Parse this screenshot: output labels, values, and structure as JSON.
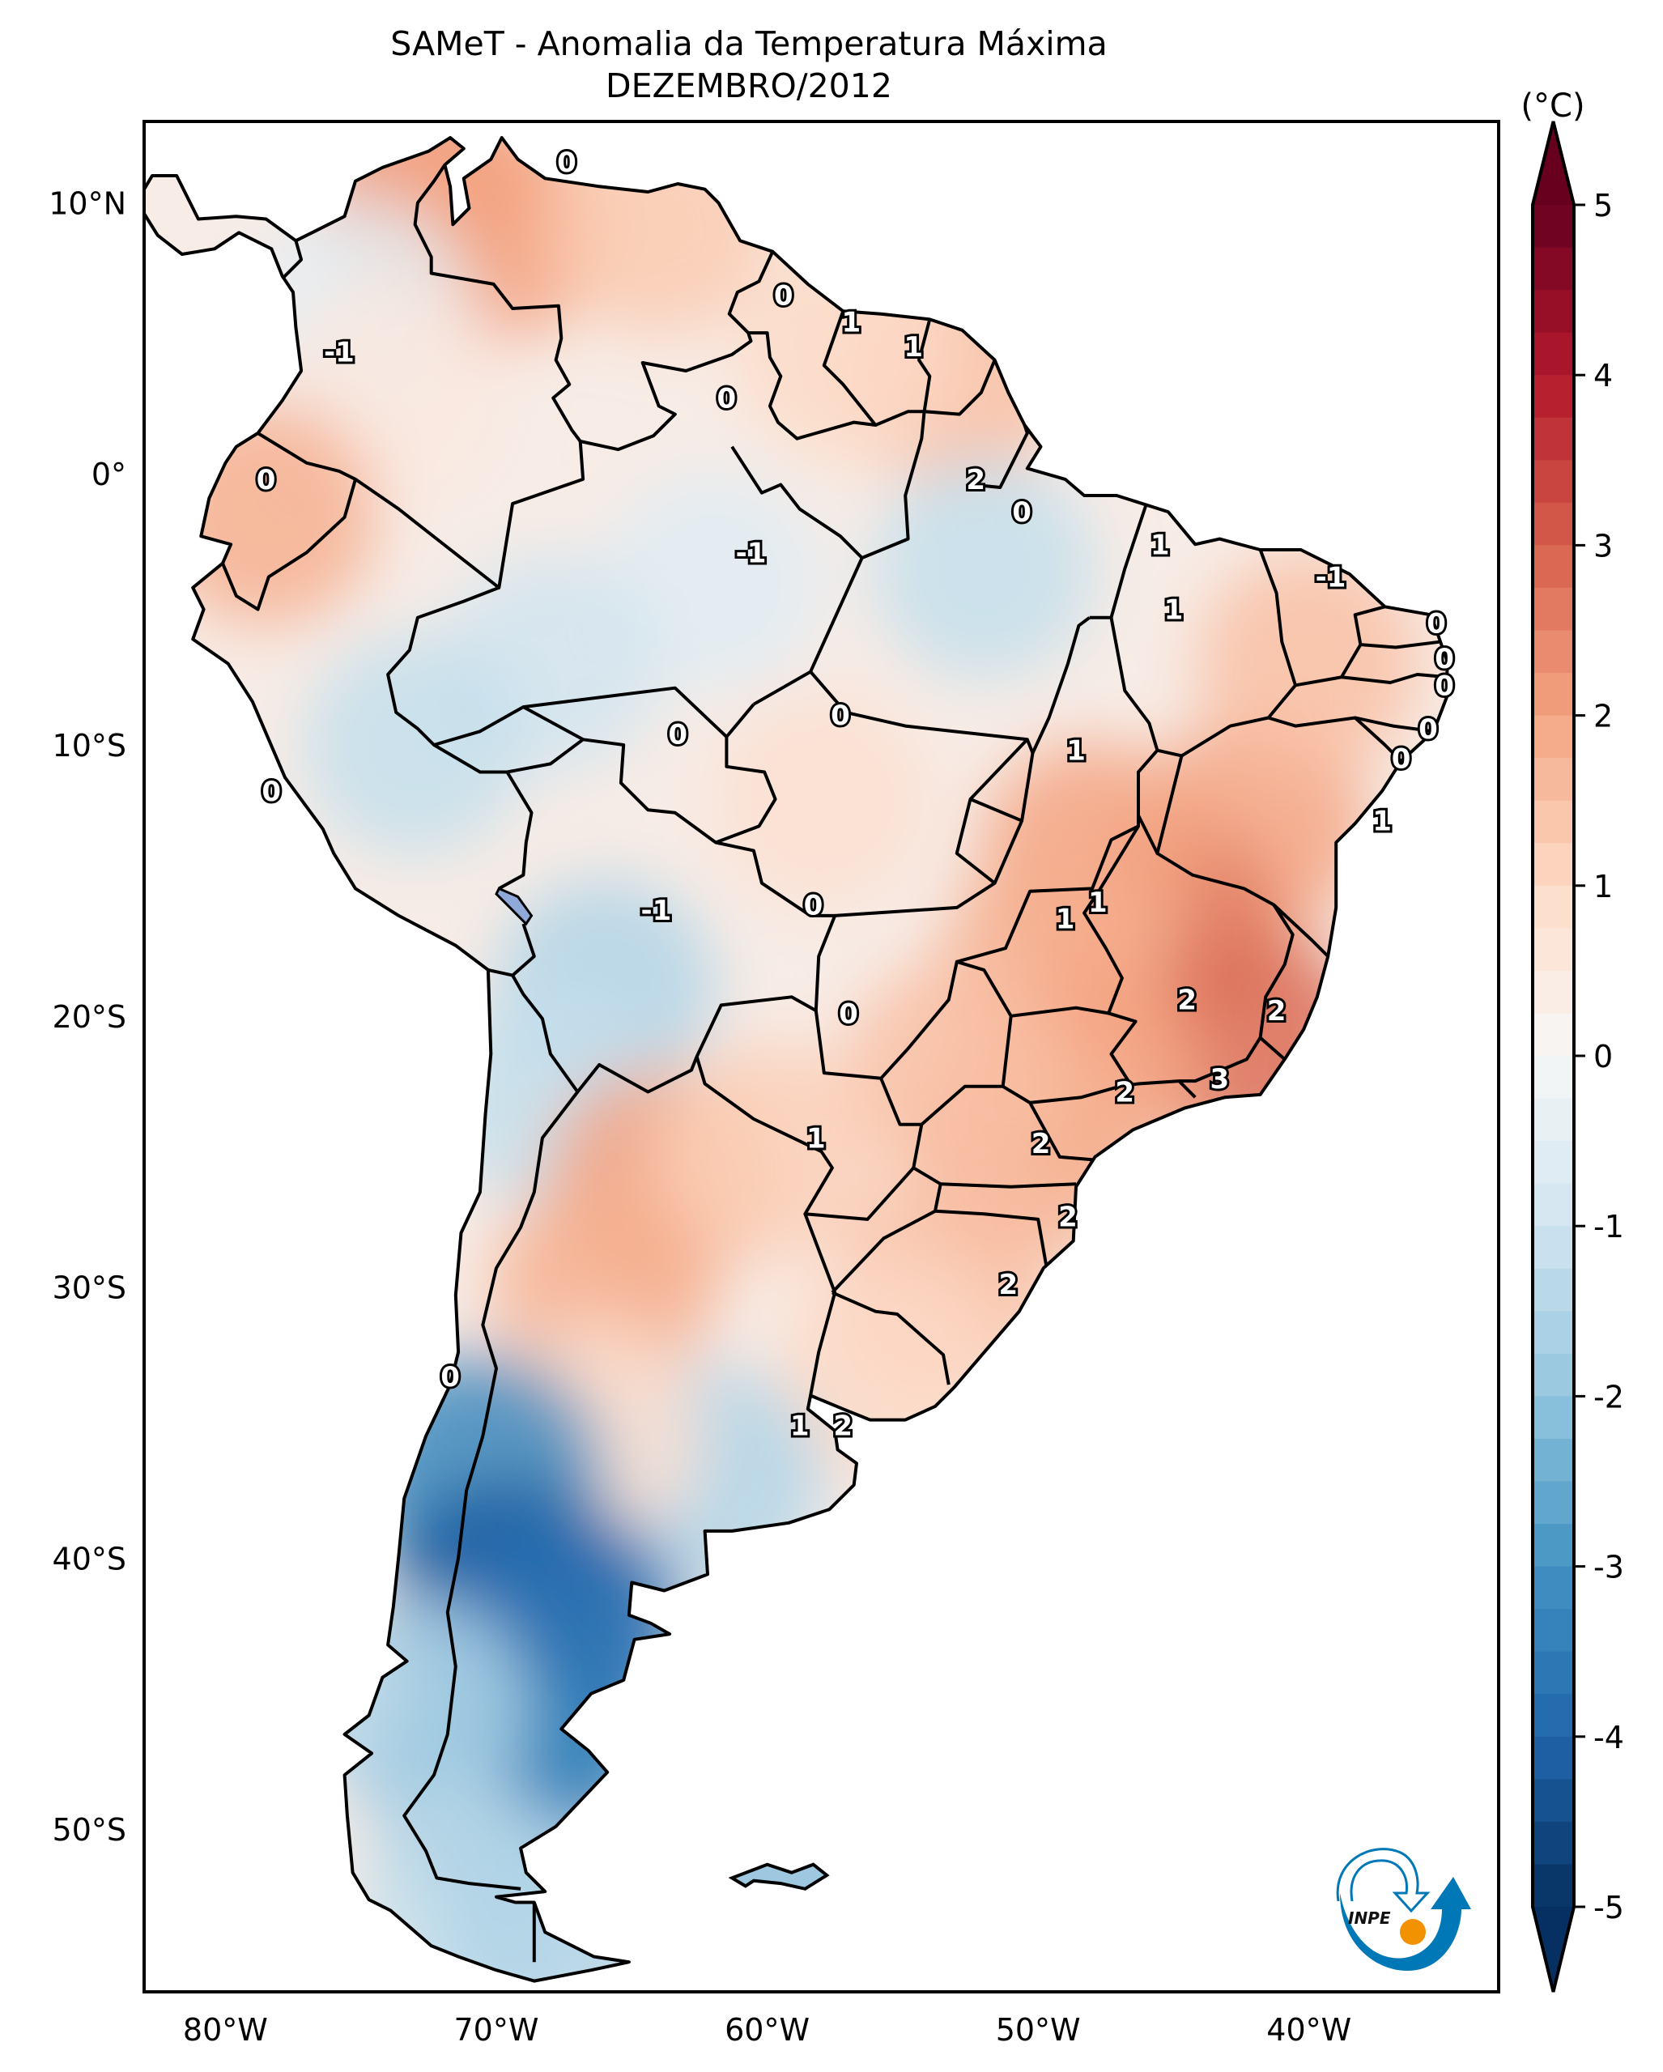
{
  "title": {
    "line1": "SAMeT - Anomalia da Temperatura Máxima",
    "line2": "DEZEMBRO/2012"
  },
  "logo": {
    "text": "INPE",
    "name": "inpe-logo"
  },
  "chart_data": {
    "type": "heatmap",
    "title": "SAMeT - Anomalia da Temperatura Máxima",
    "subtitle": "DEZEMBRO/2012",
    "xlabel": "",
    "ylabel": "",
    "xlim": [
      -83,
      -33
    ],
    "ylim": [
      -56,
      13
    ],
    "x_ticks": [
      {
        "value": -80,
        "label": "80°W"
      },
      {
        "value": -70,
        "label": "70°W"
      },
      {
        "value": -60,
        "label": "60°W"
      },
      {
        "value": -50,
        "label": "50°W"
      },
      {
        "value": -40,
        "label": "40°W"
      }
    ],
    "y_ticks": [
      {
        "value": 10,
        "label": "10°N"
      },
      {
        "value": 0,
        "label": "0°"
      },
      {
        "value": -10,
        "label": "10°S"
      },
      {
        "value": -20,
        "label": "20°S"
      },
      {
        "value": -30,
        "label": "30°S"
      },
      {
        "value": -40,
        "label": "40°S"
      },
      {
        "value": -50,
        "label": "50°S"
      }
    ],
    "colorbar": {
      "label": "(°C)",
      "range": [
        -5,
        5
      ],
      "extend": "both",
      "colormap": "RdBu_r",
      "ticks": [
        {
          "value": 5,
          "label": "5"
        },
        {
          "value": 4,
          "label": "4"
        },
        {
          "value": 3,
          "label": "3"
        },
        {
          "value": 2,
          "label": "2"
        },
        {
          "value": 1,
          "label": "1"
        },
        {
          "value": 0,
          "label": "0"
        },
        {
          "value": -1,
          "label": "-1"
        },
        {
          "value": -2,
          "label": "-2"
        },
        {
          "value": -3,
          "label": "-3"
        },
        {
          "value": -4,
          "label": "-4"
        },
        {
          "value": -5,
          "label": "-5"
        }
      ]
    },
    "contour_labels": [
      {
        "lon": -67.4,
        "lat": 11.5,
        "text": "0"
      },
      {
        "lon": -75.8,
        "lat": 4.5,
        "text": "-1"
      },
      {
        "lon": -61.5,
        "lat": 2.8,
        "text": "0"
      },
      {
        "lon": -59.4,
        "lat": 6.6,
        "text": "0"
      },
      {
        "lon": -56.9,
        "lat": 5.6,
        "text": "1"
      },
      {
        "lon": -54.6,
        "lat": 4.7,
        "text": "1"
      },
      {
        "lon": -78.5,
        "lat": -0.2,
        "text": "0"
      },
      {
        "lon": -60.6,
        "lat": -2.9,
        "text": "-1"
      },
      {
        "lon": -52.3,
        "lat": -0.2,
        "text": "2"
      },
      {
        "lon": -50.6,
        "lat": -1.4,
        "text": "0"
      },
      {
        "lon": -45.5,
        "lat": -2.6,
        "text": "1"
      },
      {
        "lon": -45.0,
        "lat": -5.0,
        "text": "1"
      },
      {
        "lon": -39.2,
        "lat": -3.8,
        "text": "-1"
      },
      {
        "lon": -35.3,
        "lat": -5.5,
        "text": "0"
      },
      {
        "lon": -35.0,
        "lat": -6.8,
        "text": "0"
      },
      {
        "lon": -35.0,
        "lat": -7.8,
        "text": "0"
      },
      {
        "lon": -35.6,
        "lat": -9.4,
        "text": "0"
      },
      {
        "lon": -36.6,
        "lat": -10.5,
        "text": "0"
      },
      {
        "lon": -37.3,
        "lat": -12.8,
        "text": "1"
      },
      {
        "lon": -48.6,
        "lat": -10.2,
        "text": "1"
      },
      {
        "lon": -57.3,
        "lat": -8.9,
        "text": "0"
      },
      {
        "lon": -63.3,
        "lat": -9.6,
        "text": "0"
      },
      {
        "lon": -78.3,
        "lat": -11.7,
        "text": "0"
      },
      {
        "lon": -58.3,
        "lat": -15.9,
        "text": "0"
      },
      {
        "lon": -64.1,
        "lat": -16.1,
        "text": "-1"
      },
      {
        "lon": -47.8,
        "lat": -15.8,
        "text": "1"
      },
      {
        "lon": -49.0,
        "lat": -16.4,
        "text": "1"
      },
      {
        "lon": -57.0,
        "lat": -19.9,
        "text": "0"
      },
      {
        "lon": -44.5,
        "lat": -19.4,
        "text": "2"
      },
      {
        "lon": -41.2,
        "lat": -19.8,
        "text": "2"
      },
      {
        "lon": -43.3,
        "lat": -22.3,
        "text": "3"
      },
      {
        "lon": -46.8,
        "lat": -22.8,
        "text": "2"
      },
      {
        "lon": -49.9,
        "lat": -24.7,
        "text": "2"
      },
      {
        "lon": -58.2,
        "lat": -24.5,
        "text": "1"
      },
      {
        "lon": -48.9,
        "lat": -27.4,
        "text": "2"
      },
      {
        "lon": -51.1,
        "lat": -29.9,
        "text": "2"
      },
      {
        "lon": -71.7,
        "lat": -33.3,
        "text": "0"
      },
      {
        "lon": -58.8,
        "lat": -35.1,
        "text": "1"
      },
      {
        "lon": -57.2,
        "lat": -35.1,
        "text": "2"
      }
    ],
    "anomaly_field": [
      {
        "lon": -72.5,
        "lat": 10.5,
        "value": 2.2
      },
      {
        "lon": -70.0,
        "lat": 9.0,
        "value": 2.0
      },
      {
        "lon": -64.0,
        "lat": 9.2,
        "value": 1.3
      },
      {
        "lon": -75.0,
        "lat": 6.0,
        "value": -0.5
      },
      {
        "lon": -74.0,
        "lat": 3.0,
        "value": 0.5
      },
      {
        "lon": -78.5,
        "lat": -1.5,
        "value": 1.8
      },
      {
        "lon": -53.0,
        "lat": 3.5,
        "value": 1.5
      },
      {
        "lon": -57.0,
        "lat": 4.5,
        "value": 1.0
      },
      {
        "lon": -62.0,
        "lat": -4.0,
        "value": -0.6
      },
      {
        "lon": -52.0,
        "lat": -3.5,
        "value": -1.2
      },
      {
        "lon": -68.0,
        "lat": -7.0,
        "value": -1.0
      },
      {
        "lon": -73.0,
        "lat": -10.0,
        "value": -1.2
      },
      {
        "lon": -66.0,
        "lat": -19.0,
        "value": -1.5
      },
      {
        "lon": -68.0,
        "lat": -23.0,
        "value": -1.2
      },
      {
        "lon": -58.0,
        "lat": -12.0,
        "value": 0.8
      },
      {
        "lon": -42.0,
        "lat": -13.0,
        "value": 2.0
      },
      {
        "lon": -40.0,
        "lat": -7.0,
        "value": 1.5
      },
      {
        "lon": -45.0,
        "lat": -17.0,
        "value": 2.6
      },
      {
        "lon": -42.0,
        "lat": -21.0,
        "value": 2.8
      },
      {
        "lon": -48.0,
        "lat": -14.0,
        "value": 2.0
      },
      {
        "lon": -49.5,
        "lat": -18.0,
        "value": 1.8
      },
      {
        "lon": -48.0,
        "lat": -22.0,
        "value": 2.0
      },
      {
        "lon": -50.5,
        "lat": -25.0,
        "value": 1.8
      },
      {
        "lon": -53.0,
        "lat": -22.0,
        "value": 1.5
      },
      {
        "lon": -64.0,
        "lat": -26.0,
        "value": 2.0
      },
      {
        "lon": -66.0,
        "lat": -30.0,
        "value": 1.8
      },
      {
        "lon": -60.0,
        "lat": -25.0,
        "value": 1.2
      },
      {
        "lon": -53.5,
        "lat": -30.0,
        "value": 1.5
      },
      {
        "lon": -55.5,
        "lat": -33.0,
        "value": 1.0
      },
      {
        "lon": -62.0,
        "lat": -37.0,
        "value": -1.5
      },
      {
        "lon": -66.5,
        "lat": -35.5,
        "value": 0.8
      },
      {
        "lon": -70.5,
        "lat": -37.0,
        "value": -3.2
      },
      {
        "lon": -69.5,
        "lat": -41.5,
        "value": -4.2
      },
      {
        "lon": -67.5,
        "lat": -42.5,
        "value": -3.8
      },
      {
        "lon": -68.5,
        "lat": -46.0,
        "value": -3.6
      },
      {
        "lon": -70.0,
        "lat": -48.5,
        "value": -3.2
      },
      {
        "lon": -73.0,
        "lat": -45.5,
        "value": -1.5
      },
      {
        "lon": -71.0,
        "lat": -52.5,
        "value": -1.2
      },
      {
        "lon": -68.0,
        "lat": -54.0,
        "value": -1.5
      }
    ]
  }
}
